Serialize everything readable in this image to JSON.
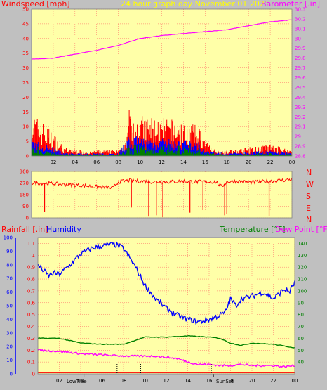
{
  "colors": {
    "background": "#c0c0c0",
    "plot_bg": "#ffffa8",
    "grid": "#ff6060",
    "wind_speed": "#ff0000",
    "wind_avg": "#0000ff",
    "wind_green": "#008000",
    "barometer": "#ff00ff",
    "direction": "#ff0000",
    "humidity": "#0000ff",
    "temperature": "#008000",
    "dew_point": "#ff00ff",
    "rainfall": "#ff0000",
    "title": "#ffff00"
  },
  "header": {
    "windspeed_label": "Windspeed [mph]",
    "title": "24 hour graph day   November 01 2021",
    "barometer_label": "Barometer [.in]"
  },
  "lower_header": {
    "rainfall_label": "Rainfall [.in]",
    "humidity_label": "Humidity",
    "temperature_label": "Temperature [°F]",
    "dewpoint_label": "Dew Point [°F]"
  },
  "direction_letters": [
    "N",
    "W",
    "S",
    "E",
    "N"
  ],
  "markers": {
    "lowtide": "LowTide",
    "sunset": "SunSet"
  },
  "chart_data": [
    {
      "type": "line",
      "name": "wind-barometer",
      "x_ticks": [
        "02",
        "04",
        "06",
        "08",
        "10",
        "12",
        "14",
        "16",
        "18",
        "20",
        "22",
        "00"
      ],
      "y_left_ticks": [
        "0",
        "5",
        "10",
        "15",
        "20",
        "25",
        "30",
        "35",
        "40",
        "45",
        "50"
      ],
      "y_left_range": [
        0,
        50
      ],
      "y_right_ticks": [
        "28.8",
        "28.9",
        "29",
        "29.1",
        "29.2",
        "29.3",
        "29.4",
        "29.5",
        "29.6",
        "29.7",
        "29.8",
        "29.9",
        "30",
        "30.1",
        "30.2",
        "30.3"
      ],
      "y_right_range": [
        28.8,
        30.3
      ],
      "x_range_hours": [
        0,
        24
      ],
      "barometer": {
        "x": [
          0,
          2,
          4,
          6,
          8,
          10,
          12,
          14,
          16,
          18,
          20,
          22,
          24
        ],
        "values": [
          29.79,
          29.8,
          29.84,
          29.88,
          29.93,
          30.0,
          30.03,
          30.05,
          30.07,
          30.09,
          30.13,
          30.17,
          30.19
        ]
      },
      "wind_gust_envelope": {
        "x": [
          0,
          1,
          2,
          3,
          5,
          7,
          8,
          8.5,
          9,
          10,
          12,
          14,
          15.5,
          16,
          17,
          18,
          20,
          22,
          24
        ],
        "values": [
          15,
          12,
          8,
          3,
          2,
          2,
          2,
          3,
          16,
          14,
          13,
          12,
          10,
          5,
          2,
          2,
          3,
          4,
          2
        ]
      },
      "wind_avg_envelope": {
        "x": [
          0,
          2,
          3,
          5,
          8,
          9,
          12,
          15.5,
          16,
          18,
          22,
          24
        ],
        "values": [
          6,
          3,
          1,
          1,
          1,
          7,
          6,
          5,
          2,
          1,
          2,
          1
        ]
      },
      "grid": true
    },
    {
      "type": "line",
      "name": "wind-direction",
      "y_ticks": [
        "0",
        "90",
        "180",
        "270",
        "360"
      ],
      "y_range": [
        0,
        360
      ],
      "x_range_hours": [
        0,
        24
      ],
      "x": [
        0,
        1,
        2,
        3,
        4,
        5,
        6,
        7,
        7.5,
        8,
        9,
        10,
        11,
        12,
        13,
        14,
        15,
        16,
        17,
        17.5,
        18,
        19,
        20,
        21,
        22,
        23,
        24
      ],
      "values": [
        270,
        270,
        265,
        260,
        255,
        250,
        240,
        235,
        230,
        280,
        290,
        285,
        280,
        280,
        280,
        285,
        280,
        280,
        280,
        240,
        280,
        285,
        275,
        280,
        285,
        290,
        300
      ],
      "spikes": [
        {
          "x": 1.2,
          "value": 45
        },
        {
          "x": 9.2,
          "value": 80
        },
        {
          "x": 10.8,
          "value": 10
        },
        {
          "x": 11.5,
          "value": 20
        },
        {
          "x": 12.1,
          "value": 5
        },
        {
          "x": 14.6,
          "value": 40
        },
        {
          "x": 15.8,
          "value": 60
        },
        {
          "x": 17.8,
          "value": 20
        },
        {
          "x": 18.0,
          "value": 30
        },
        {
          "x": 21.9,
          "value": 15
        }
      ],
      "grid": true
    },
    {
      "type": "line",
      "name": "hum-temp-rain",
      "x_ticks": [
        "02",
        "04",
        "06",
        "08",
        "10",
        "12",
        "14",
        "16",
        "18",
        "20",
        "22",
        "00"
      ],
      "y_left_ticks": [
        "0",
        "0.1",
        "0.2",
        "0.3",
        "0.4",
        "0.5",
        "0.6",
        "0.7",
        "0.8",
        "0.9",
        "1",
        "1.1"
      ],
      "y_left_range": [
        0,
        1.15
      ],
      "y_left2_ticks": [
        "0",
        "10",
        "20",
        "30",
        "40",
        "50",
        "60",
        "70",
        "80",
        "90",
        "100"
      ],
      "y_left2_range": [
        0,
        100
      ],
      "y_right_ticks": [
        "40",
        "50",
        "60",
        "70",
        "80",
        "90",
        "100",
        "110",
        "120",
        "130",
        "140"
      ],
      "y_right_range": [
        30,
        145
      ],
      "x_range_hours": [
        0,
        24
      ],
      "series": [
        {
          "name": "Humidity",
          "x": [
            0,
            0.5,
            1,
            1.5,
            2,
            3,
            4,
            5,
            6,
            7,
            7.5,
            8,
            9,
            10,
            11,
            12,
            13,
            14,
            15,
            16,
            17,
            17.5,
            18,
            18.5,
            19,
            20,
            21,
            22,
            23,
            23.5,
            24
          ],
          "values": [
            80,
            76,
            72,
            74,
            73,
            80,
            88,
            92,
            94,
            95,
            94,
            92,
            80,
            65,
            55,
            48,
            43,
            40,
            38,
            40,
            43,
            45,
            55,
            50,
            55,
            57,
            60,
            55,
            62,
            60,
            67
          ]
        },
        {
          "name": "Temperature",
          "x": [
            0,
            2,
            4,
            6,
            8,
            9,
            10,
            12,
            14,
            16,
            17,
            18,
            19,
            20,
            22,
            24
          ],
          "values": [
            60,
            60,
            56,
            55,
            55,
            58,
            61,
            61,
            62,
            61,
            60,
            56,
            54,
            56,
            55,
            52
          ]
        },
        {
          "name": "Dew Point",
          "x": [
            0,
            2,
            4,
            6,
            8,
            10,
            11,
            12,
            13,
            14,
            15,
            16,
            17,
            18,
            19,
            20,
            21,
            22,
            23,
            24
          ],
          "values": [
            50,
            49,
            47,
            46,
            45,
            45,
            45,
            44,
            43,
            40,
            38,
            38,
            37,
            37,
            38,
            37,
            37,
            37,
            36,
            37
          ]
        }
      ],
      "rainfall": {
        "x": [
          0,
          24
        ],
        "values": [
          0.01,
          0.01
        ]
      },
      "grid": true
    }
  ]
}
